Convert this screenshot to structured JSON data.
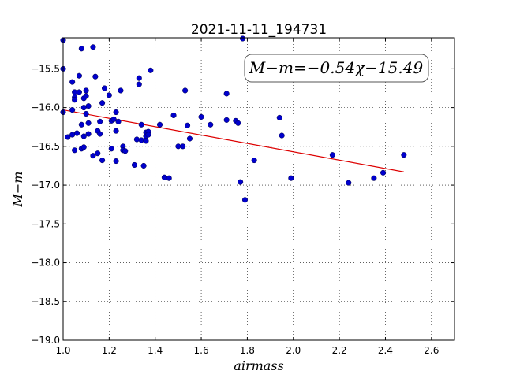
{
  "chart_data": {
    "type": "scatter",
    "title": "2021-11-11_194731",
    "xlabel": "airmass",
    "ylabel": "M−m",
    "xlim": [
      1.0,
      2.7
    ],
    "ylim": [
      -19.0,
      -15.1
    ],
    "x_ticks": [
      "1.0",
      "1.2",
      "1.4",
      "1.6",
      "1.8",
      "2.0",
      "2.2",
      "2.4",
      "2.6"
    ],
    "x_tick_values": [
      1.0,
      1.2,
      1.4,
      1.6,
      1.8,
      2.0,
      2.2,
      2.4,
      2.6
    ],
    "y_ticks": [
      "−15.5",
      "−16.0",
      "−16.5",
      "−17.0",
      "−17.5",
      "−18.0",
      "−18.5",
      "−19.0"
    ],
    "y_tick_values": [
      -15.5,
      -16.0,
      -16.5,
      -17.0,
      -17.5,
      -18.0,
      -18.5,
      -19.0
    ],
    "grid": true,
    "annotation": "M−m=−0.54χ−15.49",
    "point_color": "#0000cc",
    "fit_color": "#dd0000",
    "fit": {
      "slope": -0.54,
      "intercept": -15.49,
      "x_range": [
        1.0,
        2.48
      ]
    },
    "points": [
      [
        1.0,
        -15.13
      ],
      [
        1.0,
        -15.5
      ],
      [
        1.0,
        -16.06
      ],
      [
        1.02,
        -16.38
      ],
      [
        1.04,
        -16.35
      ],
      [
        1.04,
        -15.67
      ],
      [
        1.04,
        -16.03
      ],
      [
        1.05,
        -15.8
      ],
      [
        1.05,
        -15.87
      ],
      [
        1.05,
        -15.9
      ],
      [
        1.05,
        -16.55
      ],
      [
        1.06,
        -16.33
      ],
      [
        1.07,
        -15.8
      ],
      [
        1.07,
        -15.59
      ],
      [
        1.08,
        -15.24
      ],
      [
        1.08,
        -16.22
      ],
      [
        1.08,
        -16.53
      ],
      [
        1.09,
        -15.88
      ],
      [
        1.09,
        -16.0
      ],
      [
        1.09,
        -16.51
      ],
      [
        1.09,
        -16.37
      ],
      [
        1.1,
        -15.78
      ],
      [
        1.1,
        -15.85
      ],
      [
        1.1,
        -16.08
      ],
      [
        1.11,
        -16.34
      ],
      [
        1.11,
        -15.98
      ],
      [
        1.11,
        -16.2
      ],
      [
        1.13,
        -15.22
      ],
      [
        1.13,
        -16.62
      ],
      [
        1.14,
        -15.6
      ],
      [
        1.15,
        -16.3
      ],
      [
        1.15,
        -16.59
      ],
      [
        1.16,
        -16.18
      ],
      [
        1.16,
        -16.34
      ],
      [
        1.17,
        -15.94
      ],
      [
        1.17,
        -16.68
      ],
      [
        1.18,
        -15.75
      ],
      [
        1.2,
        -15.84
      ],
      [
        1.21,
        -16.17
      ],
      [
        1.21,
        -16.53
      ],
      [
        1.22,
        -16.15
      ],
      [
        1.23,
        -16.3
      ],
      [
        1.23,
        -16.69
      ],
      [
        1.23,
        -16.06
      ],
      [
        1.24,
        -16.18
      ],
      [
        1.25,
        -15.78
      ],
      [
        1.26,
        -16.5
      ],
      [
        1.26,
        -16.55
      ],
      [
        1.27,
        -16.56
      ],
      [
        1.31,
        -16.74
      ],
      [
        1.32,
        -16.41
      ],
      [
        1.33,
        -15.62
      ],
      [
        1.33,
        -15.7
      ],
      [
        1.34,
        -16.42
      ],
      [
        1.34,
        -16.22
      ],
      [
        1.35,
        -16.75
      ],
      [
        1.36,
        -16.32
      ],
      [
        1.36,
        -16.37
      ],
      [
        1.36,
        -16.43
      ],
      [
        1.37,
        -16.31
      ],
      [
        1.37,
        -16.35
      ],
      [
        1.38,
        -15.52
      ],
      [
        1.42,
        -16.22
      ],
      [
        1.44,
        -16.9
      ],
      [
        1.46,
        -16.91
      ],
      [
        1.48,
        -16.1
      ],
      [
        1.5,
        -16.5
      ],
      [
        1.52,
        -16.5
      ],
      [
        1.53,
        -15.78
      ],
      [
        1.54,
        -16.23
      ],
      [
        1.55,
        -16.4
      ],
      [
        1.6,
        -16.12
      ],
      [
        1.64,
        -16.22
      ],
      [
        1.71,
        -15.82
      ],
      [
        1.71,
        -16.16
      ],
      [
        1.75,
        -16.17
      ],
      [
        1.76,
        -16.2
      ],
      [
        1.77,
        -16.96
      ],
      [
        1.78,
        -15.11
      ],
      [
        1.79,
        -17.19
      ],
      [
        1.83,
        -16.68
      ],
      [
        1.94,
        -16.13
      ],
      [
        1.95,
        -16.36
      ],
      [
        1.99,
        -16.91
      ],
      [
        2.17,
        -16.61
      ],
      [
        2.24,
        -16.97
      ],
      [
        2.35,
        -16.91
      ],
      [
        2.39,
        -16.84
      ],
      [
        2.48,
        -16.61
      ]
    ]
  }
}
